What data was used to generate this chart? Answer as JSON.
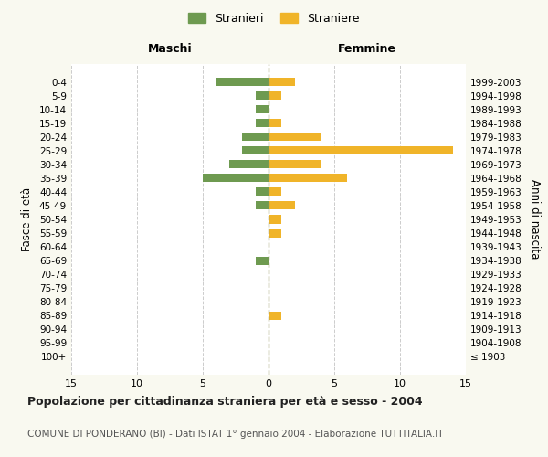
{
  "age_groups": [
    "100+",
    "95-99",
    "90-94",
    "85-89",
    "80-84",
    "75-79",
    "70-74",
    "65-69",
    "60-64",
    "55-59",
    "50-54",
    "45-49",
    "40-44",
    "35-39",
    "30-34",
    "25-29",
    "20-24",
    "15-19",
    "10-14",
    "5-9",
    "0-4"
  ],
  "birth_years": [
    "≤ 1903",
    "1904-1908",
    "1909-1913",
    "1914-1918",
    "1919-1923",
    "1924-1928",
    "1929-1933",
    "1934-1938",
    "1939-1943",
    "1944-1948",
    "1949-1953",
    "1954-1958",
    "1959-1963",
    "1964-1968",
    "1969-1973",
    "1974-1978",
    "1979-1983",
    "1984-1988",
    "1989-1993",
    "1994-1998",
    "1999-2003"
  ],
  "maschi": [
    0,
    0,
    0,
    0,
    0,
    0,
    0,
    1,
    0,
    0,
    0,
    1,
    1,
    5,
    3,
    2,
    2,
    1,
    1,
    1,
    4
  ],
  "femmine": [
    0,
    0,
    0,
    1,
    0,
    0,
    0,
    0,
    0,
    1,
    1,
    2,
    1,
    6,
    4,
    14,
    4,
    1,
    0,
    1,
    2
  ],
  "color_maschi": "#6e9a50",
  "color_femmine": "#f0b429",
  "xlim": 15,
  "title": "Popolazione per cittadinanza straniera per età e sesso - 2004",
  "subtitle": "COMUNE DI PONDERANO (BI) - Dati ISTAT 1° gennaio 2004 - Elaborazione TUTTITALIA.IT",
  "ylabel_left": "Fasce di età",
  "ylabel_right": "Anni di nascita",
  "legend_maschi": "Stranieri",
  "legend_femmine": "Straniere",
  "header_left": "Maschi",
  "header_right": "Femmine",
  "bg_color": "#f9f9f0",
  "plot_bg": "#ffffff"
}
